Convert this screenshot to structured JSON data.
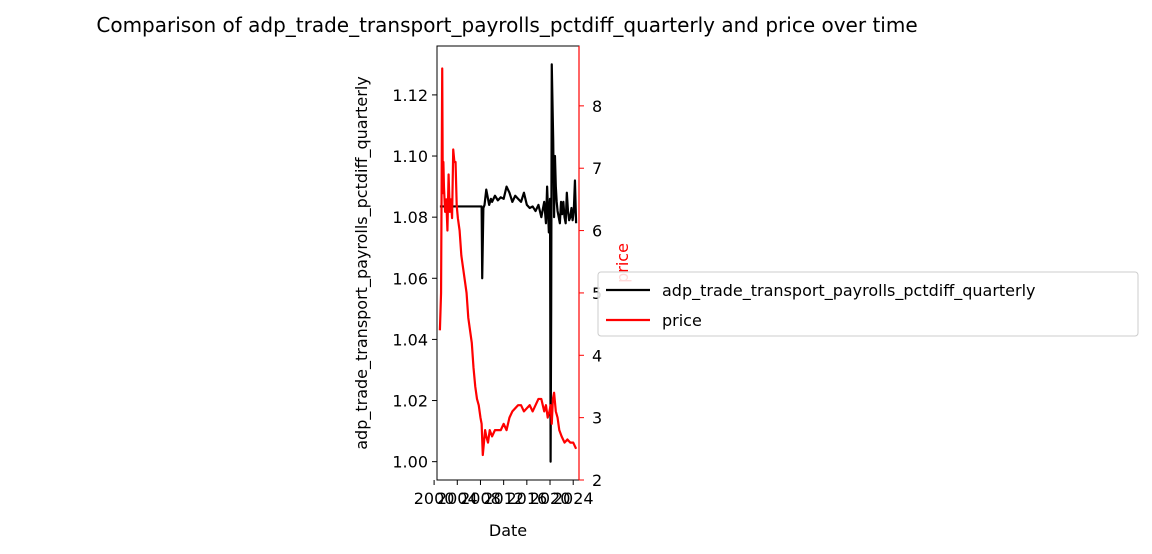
{
  "chart_data": {
    "type": "line",
    "title": "Comparison of adp_trade_transport_payrolls_pctdiff_quarterly and price over time",
    "xlabel": "Date",
    "ylabel_left": "adp_trade_transport_payrolls_pctdiff_quarterly",
    "ylabel_right": "price",
    "xlim": [
      2000.5,
      2025.0
    ],
    "ylim_left": [
      0.994,
      1.136
    ],
    "ylim_right": [
      2.0,
      8.96
    ],
    "x_ticks": [
      2000,
      2004,
      2008,
      2012,
      2016,
      2020,
      2024
    ],
    "x_tick_labels": [
      "2000",
      "2004",
      "2008",
      "2012",
      "2016",
      "2020",
      "2024"
    ],
    "y_left_ticks": [
      1.0,
      1.02,
      1.04,
      1.06,
      1.08,
      1.1,
      1.12
    ],
    "y_left_tick_labels": [
      "1.00",
      "1.02",
      "1.04",
      "1.06",
      "1.08",
      "1.10",
      "1.12"
    ],
    "y_right_ticks": [
      2,
      3,
      4,
      5,
      6,
      7,
      8
    ],
    "y_right_tick_labels": [
      "2",
      "3",
      "4",
      "5",
      "6",
      "7",
      "8"
    ],
    "grid": false,
    "legend_position": "outside-right",
    "series": [
      {
        "name": "adp_trade_transport_payrolls_pctdiff_quarterly",
        "color": "#000000",
        "axis": "left",
        "x": [
          2001.0,
          2003.0,
          2005.0,
          2007.0,
          2008.2,
          2008.3,
          2008.5,
          2008.7,
          2009.0,
          2009.2,
          2009.5,
          2009.8,
          2010.0,
          2010.5,
          2011.0,
          2011.5,
          2012.0,
          2012.5,
          2013.0,
          2013.5,
          2014.0,
          2014.5,
          2015.0,
          2015.5,
          2016.0,
          2016.5,
          2017.0,
          2017.5,
          2018.0,
          2018.5,
          2019.0,
          2019.3,
          2019.5,
          2019.8,
          2020.0,
          2020.1,
          2020.2,
          2020.3,
          2020.4,
          2020.55,
          2020.7,
          2020.85,
          2021.0,
          2021.15,
          2021.3,
          2021.5,
          2021.7,
          2021.9,
          2022.1,
          2022.3,
          2022.5,
          2022.7,
          2022.9,
          2023.1,
          2023.3,
          2023.5,
          2023.7,
          2023.9,
          2024.1,
          2024.3,
          2024.5
        ],
        "values": [
          1.0835,
          1.0835,
          1.0835,
          1.0835,
          1.0835,
          1.06,
          1.083,
          1.084,
          1.089,
          1.087,
          1.084,
          1.086,
          1.085,
          1.087,
          1.0855,
          1.0865,
          1.086,
          1.09,
          1.088,
          1.085,
          1.087,
          1.086,
          1.085,
          1.088,
          1.084,
          1.083,
          1.0835,
          1.082,
          1.084,
          1.08,
          1.085,
          1.078,
          1.09,
          1.075,
          1.086,
          1.0,
          1.05,
          1.13,
          1.12,
          1.105,
          1.08,
          1.1,
          1.09,
          1.085,
          1.082,
          1.08,
          1.078,
          1.085,
          1.081,
          1.085,
          1.08,
          1.078,
          1.088,
          1.082,
          1.079,
          1.08,
          1.083,
          1.079,
          1.082,
          1.092,
          1.078
        ]
      },
      {
        "name": "price",
        "color": "#ff0000",
        "axis": "right",
        "x": [
          2001.0,
          2001.2,
          2001.4,
          2001.5,
          2001.6,
          2001.7,
          2001.9,
          2002.1,
          2002.3,
          2002.5,
          2002.7,
          2002.9,
          2003.1,
          2003.3,
          2003.5,
          2003.7,
          2003.9,
          2004.1,
          2004.4,
          2004.7,
          2005.0,
          2005.3,
          2005.6,
          2005.9,
          2006.2,
          2006.5,
          2006.8,
          2007.1,
          2007.4,
          2007.7,
          2008.0,
          2008.2,
          2008.4,
          2008.6,
          2008.8,
          2009.0,
          2009.3,
          2009.6,
          2010.0,
          2010.5,
          2011.0,
          2011.5,
          2012.0,
          2012.5,
          2013.0,
          2013.5,
          2014.0,
          2014.5,
          2015.0,
          2015.5,
          2016.0,
          2016.5,
          2017.0,
          2017.5,
          2018.0,
          2018.5,
          2019.0,
          2019.3,
          2019.6,
          2019.9,
          2020.1,
          2020.3,
          2020.5,
          2020.7,
          2021.0,
          2021.3,
          2021.6,
          2022.0,
          2022.5,
          2023.0,
          2023.5,
          2024.0,
          2024.5
        ],
        "values": [
          4.4,
          5.0,
          8.6,
          6.6,
          7.1,
          6.7,
          6.3,
          6.5,
          6.0,
          6.9,
          6.3,
          6.5,
          6.2,
          7.3,
          7.1,
          7.1,
          6.4,
          6.2,
          6.0,
          5.6,
          5.4,
          5.2,
          5.0,
          4.6,
          4.4,
          4.2,
          3.8,
          3.5,
          3.3,
          3.2,
          3.0,
          2.9,
          2.4,
          2.6,
          2.8,
          2.7,
          2.6,
          2.8,
          2.7,
          2.8,
          2.8,
          2.8,
          2.9,
          2.8,
          3.0,
          3.1,
          3.15,
          3.2,
          3.2,
          3.1,
          3.15,
          3.2,
          3.1,
          3.2,
          3.3,
          3.3,
          3.1,
          3.2,
          3.0,
          3.1,
          3.2,
          2.9,
          3.3,
          3.4,
          3.1,
          3.0,
          2.8,
          2.7,
          2.6,
          2.65,
          2.6,
          2.6,
          2.5
        ]
      }
    ]
  }
}
